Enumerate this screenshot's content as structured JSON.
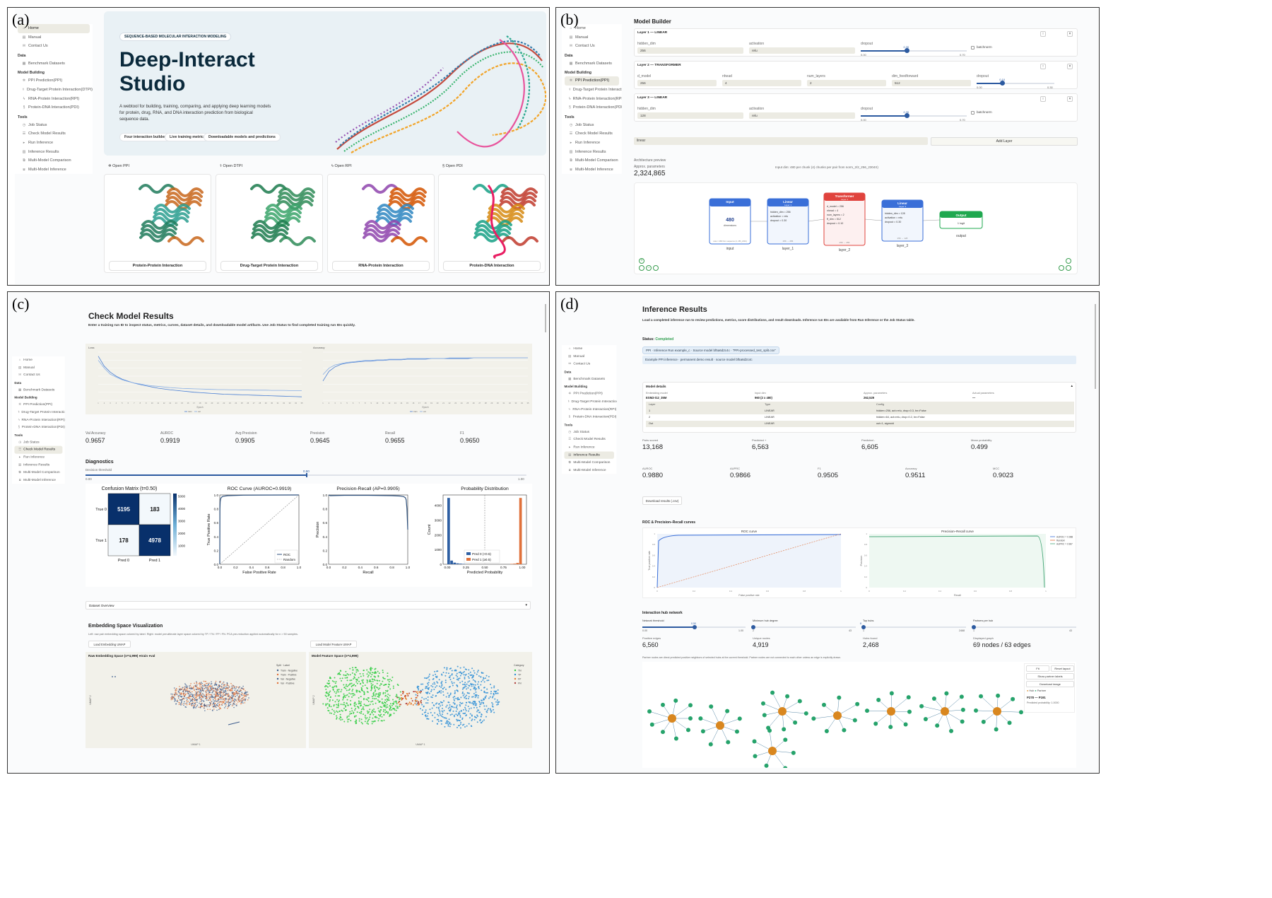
{
  "panel_labels": {
    "a": "(a)",
    "b": "(b)",
    "c": "(c)",
    "d": "(d)"
  },
  "sidebar": {
    "items": [
      {
        "label": "Home",
        "icon": "home-icon",
        "glyph": "⌂"
      },
      {
        "label": "Manual",
        "icon": "book-icon",
        "glyph": "▤"
      },
      {
        "label": "Contact Us",
        "icon": "mail-icon",
        "glyph": "✉"
      },
      {
        "section": "Data"
      },
      {
        "label": "Benchmark Datasets",
        "icon": "database-icon",
        "glyph": "▦"
      },
      {
        "section": "Model Building"
      },
      {
        "label": "PPI Prediction(PPI)",
        "icon": "ppi-icon",
        "glyph": "✲"
      },
      {
        "label": "Drug-Target Protein Interaction(DTPI)",
        "icon": "drug-icon",
        "glyph": "⚕"
      },
      {
        "label": "RNA-Protein Interaction(RPI)",
        "icon": "rna-icon",
        "glyph": "ϟ"
      },
      {
        "label": "Protein-DNA Interaction(PDI)",
        "icon": "dna-icon",
        "glyph": "§"
      },
      {
        "section": "Tools"
      },
      {
        "label": "Job Status",
        "icon": "job-icon",
        "glyph": "◷"
      },
      {
        "label": "Check Model Results",
        "icon": "results-icon",
        "glyph": "☰"
      },
      {
        "label": "Run Inference",
        "icon": "run-icon",
        "glyph": "▸"
      },
      {
        "label": "Inference Results",
        "icon": "inference-icon",
        "glyph": "▥"
      },
      {
        "label": "Multi-Model Comparison",
        "icon": "compare-icon",
        "glyph": "⧉"
      },
      {
        "label": "Multi-Model Inference",
        "icon": "multi-icon",
        "glyph": "⧈"
      }
    ]
  },
  "a": {
    "eyebrow": "SEQUENCE-BASED MOLECULAR INTERACTION MODELING",
    "title_line1": "Deep-Interact",
    "title_line2": "Studio",
    "description": "A webtool for building, training, comparing, and applying deep learning models for protein, drug, RNA, and DNA interaction prediction from biological sequence data.",
    "chips": [
      "Four interaction builders",
      "Live training metrics",
      "Downloadable models and predictions"
    ],
    "links": [
      {
        "label": "Open PPI",
        "icon": "ppi-icon",
        "glyph": "✲"
      },
      {
        "label": "Open DTPI",
        "icon": "drug-icon",
        "glyph": "⚕"
      },
      {
        "label": "Open RPI",
        "icon": "rna-icon",
        "glyph": "ϟ"
      },
      {
        "label": "Open PDI",
        "icon": "dna-icon",
        "glyph": "§"
      }
    ],
    "cards": [
      "Protein-Protein Interaction",
      "Drug-Target Protein Interaction",
      "RNA-Protein Interaction",
      "Protein-DNA Interaction"
    ]
  },
  "b": {
    "title": "Model Builder",
    "layers": [
      {
        "header": "Layer 1 — LINEAR",
        "fields": [
          "hidden_dim",
          "activation",
          "dropout"
        ],
        "values": [
          "256",
          "relu"
        ],
        "range": [
          "0.00",
          "0.70"
        ],
        "dropout_val": "0.30",
        "dropout_frac": 0.43,
        "batch": "batchnorm"
      },
      {
        "header": "Layer 2 — TRANSFORMER",
        "fields": [
          "d_model",
          "nhead",
          "num_layers",
          "dim_feedforward",
          "dropout"
        ],
        "values": [
          "256",
          "4",
          "2",
          "512"
        ],
        "range": [
          "0.00",
          "0.30"
        ],
        "dropout_val": "0.10",
        "dropout_frac": 0.33
      },
      {
        "header": "Layer 3 — LINEAR",
        "fields": [
          "hidden_dim",
          "activation",
          "dropout"
        ],
        "values": [
          "128",
          "relu"
        ],
        "range": [
          "0.00",
          "0.70"
        ],
        "dropout_val": "0.30",
        "dropout_frac": 0.43,
        "batch": "batchnorm"
      }
    ],
    "add_select": "linear",
    "add_button": "Add Layer",
    "arch_label": "Architecture preview",
    "params_label": "Approx. parameters",
    "params_value": "2,324,865",
    "input_note": "Input dim: 480 per chunk (4) chunks per pair from norm_2/2_256_2304X)",
    "nodes": {
      "input": {
        "title": "Input",
        "value": "480",
        "sub": "dimensions",
        "foot": "Auto = 480 from sequence (4, 256_2304)",
        "caption": "input"
      },
      "layer1": {
        "title": "Linear",
        "sub": "Layer 1",
        "params": [
          "hidden_dim = 256",
          "activation = relu",
          "dropout = 0.30"
        ],
        "foot": "256 → 256",
        "caption": "layer_1"
      },
      "layer2": {
        "title": "Transformer",
        "sub": "Layer 2",
        "params": [
          "d_model = 256",
          "nhead = 4",
          "num_layers = 2",
          "ff_dim = 512",
          "dropout = 0.10"
        ],
        "foot": "256 → 256",
        "caption": "layer_2"
      },
      "layer3": {
        "title": "Linear",
        "sub": "Layer 3",
        "params": [
          "hidden_dim = 128",
          "activation = relu",
          "dropout = 0.30"
        ],
        "foot": "256 → 128",
        "caption": "layer_3"
      },
      "output": {
        "title": "Output",
        "sub": "1 logit",
        "caption": "output"
      }
    }
  },
  "c": {
    "title": "Check Model Results",
    "subtitle": "Enter a training run ID to inspect status, metrics, curves, dataset details, and downloadable model artifacts. Use Job Status to find completed training run IDs quickly.",
    "metrics": [
      {
        "label": "Val Accuracy",
        "value": "0.9657"
      },
      {
        "label": "AUROC",
        "value": "0.9919"
      },
      {
        "label": "Avg Precision",
        "value": "0.9905"
      },
      {
        "label": "Precision",
        "value": "0.9645"
      },
      {
        "label": "Recall",
        "value": "0.9655"
      },
      {
        "label": "F1",
        "value": "0.9650"
      }
    ],
    "diagnostics_title": "Diagnostics",
    "threshold_label": "Decision threshold",
    "threshold_min": "0.00",
    "threshold_max": "1.00",
    "threshold_value": "0.50",
    "threshold_frac": 0.5,
    "loss_title": "Loss",
    "acc_title": "Accuracy",
    "epoch_label": "Epoch",
    "cm_title": "Confusion Matrix (t=0.50)",
    "roc_title": "ROC Curve  (AUROC=0.9919)",
    "pr_title": "Precision-Recall  (AP=0.9905)",
    "prob_title": "Probability Distribution",
    "dataset_overview": "Dataset Overview",
    "emb_title": "Embedding Space Visualization",
    "emb_sub": "Left: raw pair embedding space colored by label. Right: model penultimate layer space colored by TP / TN / FP / FN. PCA pre-reduction applied automatically for n > 50 samples.",
    "btn_raw": "Load Embedding UMAP",
    "btn_model": "Load Model Feature UMAP",
    "raw_title": "Raw Embedding Space (n=4,999) ●train ●val",
    "model_title": "Model Feature Space (n=4,999)",
    "umap1": "UMAP 1",
    "umap2": "UMAP 2",
    "raw_legend_title": "Split · Label",
    "raw_legend": [
      "Train · Negative",
      "Train · Positive",
      "Val · Negative",
      "Val · Positive"
    ],
    "model_legend_title": "Category",
    "model_legend": [
      "TN",
      "TP",
      "FP",
      "FN"
    ]
  },
  "d": {
    "title": "Inference Results",
    "subtitle": "Load a completed inference run to review predictions, metrics, score distributions, and result downloads. Inference run IDs are available from Run Inference or the Job Status table.",
    "status_label": "Status:",
    "status_value": "Completed",
    "run_tag": "PPI · Inference Run  example_c  · Source model  bf5a6d2c4c  · \"PPI-processed_test_split.csv\"",
    "demo_note": "Example PPI inference · permanent demo result · source model bf5a6d2c4c",
    "model_details": "Model details",
    "details_labels": [
      "Embedding model",
      "Input dim",
      "Approx. parameters",
      "Actual parameters"
    ],
    "details_values": [
      "ESM2-t12_35M",
      "960 (2 x 480)",
      "262,529",
      "—"
    ],
    "layer_table": {
      "headers": [
        "Layer",
        "Type",
        "Config"
      ],
      "rows": [
        [
          "1",
          "LINEAR",
          "hidden=256, act=relu, drop=0.3, bn=False"
        ],
        [
          "2",
          "LINEAR",
          "hidden=64, act=relu, drop=0.2, bn=False"
        ],
        [
          "Out",
          "LINEAR",
          "out=1, sigmoid"
        ]
      ]
    },
    "metrics1": [
      {
        "label": "Pairs scored",
        "value": "13,168"
      },
      {
        "label": "Predicted +",
        "value": "6,563"
      },
      {
        "label": "Predicted -",
        "value": "6,605"
      },
      {
        "label": "Mean probability",
        "value": "0.499"
      }
    ],
    "metrics2": [
      {
        "label": "AUROC",
        "value": "0.9880"
      },
      {
        "label": "AUPRC",
        "value": "0.9866"
      },
      {
        "label": "F1",
        "value": "0.9505"
      },
      {
        "label": "Accuracy",
        "value": "0.9511"
      },
      {
        "label": "MCC",
        "value": "0.9023"
      }
    ],
    "download_button": "Download results (.csv)",
    "curves_title": "ROC & Precision–Recall curves",
    "roc_title": "ROC curve",
    "pr_title": "Precision–Recall curve",
    "fpr_label": "False positive rate",
    "tpr_label": "True positive rate",
    "recall_label": "Recall",
    "precision_label": "Precision",
    "legend": [
      "AUROC = 0.988",
      "Random",
      "AUPRC = 0.987"
    ],
    "hub_title": "Interaction hub network",
    "hub_sliders": [
      {
        "label": "Network threshold",
        "min": "0.00",
        "max": "1.00",
        "value": "0.50",
        "frac": 0.5
      },
      {
        "label": "Minimum hub degree",
        "min": "2",
        "max": "43",
        "value": "",
        "frac": 0.0
      },
      {
        "label": "Top hubs",
        "min": "1",
        "max": "2468",
        "value": "8",
        "frac": 0.0
      },
      {
        "label": "Partners per hub",
        "min": "1",
        "max": "43",
        "value": "",
        "frac": 0.0
      }
    ],
    "hub_metrics": [
      {
        "label": "Positive edges",
        "value": "6,560"
      },
      {
        "label": "Unique nodes",
        "value": "4,919"
      },
      {
        "label": "Hubs found",
        "value": "2,468"
      },
      {
        "label": "Displayed graph",
        "value": "69 nodes / 63 edges"
      }
    ],
    "hub_note": "Partner nodes are direct predicted positive neighbors of selected hubs at the current threshold. Partner nodes are not connected to each other unless an edge is explicitly drawn.",
    "graph_buttons": [
      "Fit",
      "Reset layout",
      "Show partner labels",
      "Download image"
    ],
    "graph_legend": [
      "Hub",
      "Partner"
    ],
    "selected_pair": "P278 — P191",
    "selected_prob": "Predicted probability: 1.0000"
  },
  "chart_data": [
    {
      "type": "line",
      "title": "Loss",
      "xlabel": "Epoch",
      "x": [
        1,
        2,
        3,
        4,
        5,
        6,
        7,
        8,
        9,
        10,
        11,
        12,
        13,
        14,
        15,
        16,
        17,
        18,
        19,
        20,
        21,
        22,
        23,
        24,
        25,
        26,
        27,
        28,
        29,
        30,
        31,
        32,
        33,
        34,
        35
      ],
      "series": [
        {
          "name": "train",
          "values": [
            0.38,
            0.33,
            0.3,
            0.28,
            0.265,
            0.255,
            0.245,
            0.238,
            0.232,
            0.226,
            0.22,
            0.216,
            0.212,
            0.209,
            0.206,
            0.203,
            0.2,
            0.198,
            0.196,
            0.194,
            0.192,
            0.19,
            0.189,
            0.188,
            0.187,
            0.186,
            0.185,
            0.184,
            0.183,
            0.182,
            0.181,
            0.18,
            0.179,
            0.178,
            0.177
          ]
        },
        {
          "name": "val",
          "values": [
            0.36,
            0.32,
            0.29,
            0.275,
            0.262,
            0.253,
            0.246,
            0.241,
            0.236,
            0.232,
            0.229,
            0.226,
            0.223,
            0.221,
            0.219,
            0.218,
            0.217,
            0.216,
            0.215,
            0.214,
            0.213,
            0.213,
            0.212,
            0.212,
            0.211,
            0.211,
            0.21,
            0.21,
            0.21,
            0.209,
            0.209,
            0.209,
            0.208,
            0.208,
            0.208
          ]
        }
      ]
    },
    {
      "type": "line",
      "title": "Accuracy",
      "xlabel": "Epoch",
      "x": [
        1,
        2,
        3,
        4,
        5,
        6,
        7,
        8,
        9,
        10,
        11,
        12,
        13,
        14,
        15,
        16,
        17,
        18,
        19,
        20,
        21,
        22,
        23,
        24,
        25,
        26,
        27,
        28,
        29,
        30,
        31,
        32,
        33,
        34,
        35
      ],
      "series": [
        {
          "name": "train",
          "values": [
            0.93,
            0.945,
            0.952,
            0.956,
            0.958,
            0.959,
            0.96,
            0.961,
            0.961,
            0.962,
            0.962,
            0.963,
            0.963,
            0.963,
            0.964,
            0.964,
            0.964,
            0.964,
            0.965,
            0.965,
            0.965,
            0.965,
            0.965,
            0.965,
            0.965,
            0.966,
            0.966,
            0.966,
            0.966,
            0.966,
            0.966,
            0.966,
            0.966,
            0.966,
            0.966
          ]
        },
        {
          "name": "val",
          "values": [
            0.94,
            0.95,
            0.955,
            0.957,
            0.959,
            0.96,
            0.961,
            0.962,
            0.962,
            0.963,
            0.963,
            0.964,
            0.964,
            0.964,
            0.965,
            0.965,
            0.965,
            0.965,
            0.965,
            0.965,
            0.965,
            0.966,
            0.966,
            0.966,
            0.966,
            0.966,
            0.966,
            0.966,
            0.966,
            0.966,
            0.966,
            0.966,
            0.966,
            0.966,
            0.966
          ]
        }
      ]
    },
    {
      "type": "heatmap",
      "title": "Confusion Matrix (t=0.50)",
      "x_categories": [
        "Pred 0",
        "Pred 1"
      ],
      "y_categories": [
        "True 0",
        "True 1"
      ],
      "values": [
        [
          5195,
          183
        ],
        [
          178,
          4978
        ]
      ],
      "colorbar_ticks": [
        1000,
        2000,
        3000,
        4000,
        5000
      ]
    },
    {
      "type": "line",
      "title": "ROC Curve  (AUROC=0.9919)",
      "xlabel": "False Positive Rate",
      "ylabel": "True Positive Rate",
      "xlim": [
        0,
        1
      ],
      "ylim": [
        0,
        1
      ],
      "ticks": [
        "0.0",
        "0.2",
        "0.4",
        "0.6",
        "0.8",
        "1.0"
      ],
      "series": [
        {
          "name": "ROC",
          "x": [
            0,
            0.002,
            0.005,
            0.01,
            0.02,
            0.04,
            0.1,
            0.3,
            0.6,
            1.0
          ],
          "y": [
            0,
            0.8,
            0.9,
            0.94,
            0.965,
            0.98,
            0.99,
            0.997,
            0.999,
            1.0
          ]
        },
        {
          "name": "Random",
          "x": [
            0,
            1
          ],
          "y": [
            0,
            1
          ]
        }
      ]
    },
    {
      "type": "line",
      "title": "Precision-Recall  (AP=0.9905)",
      "xlabel": "Recall",
      "ylabel": "Precision",
      "xlim": [
        0,
        1
      ],
      "ylim": [
        0,
        1
      ],
      "ticks": [
        "0.0",
        "0.2",
        "0.4",
        "0.6",
        "0.8",
        "1.0"
      ],
      "series": [
        {
          "name": "PR",
          "x": [
            0,
            0.02,
            0.2,
            0.5,
            0.8,
            0.9,
            0.95,
            0.97,
            0.98,
            0.99,
            1.0
          ],
          "y": [
            1.0,
            0.99,
            0.995,
            0.995,
            0.99,
            0.985,
            0.975,
            0.96,
            0.93,
            0.8,
            0.5
          ]
        }
      ]
    },
    {
      "type": "bar",
      "title": "Probability Distribution",
      "xlabel": "Predicted Probability",
      "ylabel": "Count",
      "xlim": [
        0,
        1
      ],
      "ylim": [
        0,
        4700
      ],
      "xticks": [
        "0.00",
        "0.25",
        "0.50",
        "0.75",
        "1.00"
      ],
      "yticks": [
        0,
        1000,
        2000,
        3000,
        4000
      ],
      "threshold": 0.5,
      "bins": [
        0.0,
        0.04,
        0.08,
        0.12,
        0.16,
        0.2,
        0.84,
        0.88,
        0.92,
        0.96
      ],
      "series": [
        {
          "name": "Pred 0 (<0.5)",
          "color": "#2e5fa3",
          "values": [
            4500,
            250,
            110,
            60,
            40,
            25,
            0,
            0,
            0,
            0
          ]
        },
        {
          "name": "Pred 1 (≥0.5)",
          "color": "#e0713a",
          "values": [
            0,
            0,
            0,
            0,
            0,
            0,
            25,
            40,
            90,
            4500
          ]
        }
      ]
    }
  ],
  "colors": {
    "accent": "#2c5aa0",
    "hero_bg": "#e9f1f5",
    "navy": "#0b2a3c",
    "input_node": "#3a6fd8",
    "linear_node": "#3a6fd8",
    "transformer_node": "#e0433d",
    "output_node": "#1fa84f",
    "hub": "#d9871f",
    "partner": "#26a36b",
    "tn": "#2ecc40",
    "tp": "#2f8fd6",
    "fp": "#e87c2c",
    "fn": "#b0413e"
  }
}
